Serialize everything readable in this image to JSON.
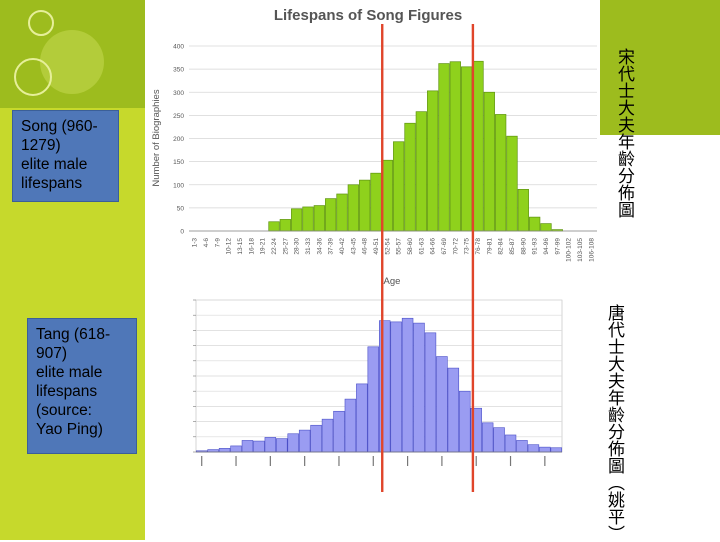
{
  "labels": {
    "song": "Song (960-\n1279)\nelite male\nlifespans",
    "tang": "Tang (618-\n907)\nelite male\nlifespans\n(source:\nYao Ping)"
  },
  "vertical_text": {
    "song": "宋代士大夫年齡分佈圖",
    "tang": "唐代士大夫年齡分佈圖（姚平）"
  },
  "colors": {
    "song_bar": "#8fd11c",
    "tang_bar": "#9a9cf2",
    "marker_line": "#e0452a",
    "left_panel": "#c6d92c",
    "label_box": "#4f77b8"
  },
  "chart_data": [
    {
      "type": "bar",
      "title": "Lifespans of Song Figures",
      "xlabel": "Age",
      "ylabel": "Number of Biographies",
      "ylim": [
        0,
        400
      ],
      "yticks": [
        0,
        50,
        100,
        150,
        200,
        250,
        300,
        350,
        400
      ],
      "grid": true,
      "categories": [
        "1-3",
        "4-6",
        "7-9",
        "10-12",
        "13-15",
        "16-18",
        "19-21",
        "22-24",
        "25-27",
        "28-30",
        "31-33",
        "34-36",
        "37-39",
        "40-42",
        "43-45",
        "46-48",
        "49-51",
        "52-54",
        "55-57",
        "58-60",
        "61-63",
        "64-66",
        "67-69",
        "70-72",
        "73-75",
        "76-78",
        "79-81",
        "82-84",
        "85-87",
        "88-90",
        "91-93",
        "94-96",
        "97-99",
        "100-102",
        "103-105",
        "106-108"
      ],
      "values": [
        0,
        0,
        0,
        0,
        0,
        0,
        0,
        20,
        25,
        48,
        52,
        55,
        70,
        80,
        100,
        110,
        125,
        153,
        193,
        233,
        258,
        303,
        362,
        366,
        355,
        367,
        300,
        252,
        205,
        90,
        30,
        16,
        3,
        0,
        0,
        0
      ]
    },
    {
      "type": "bar",
      "title": "",
      "xlabel": "",
      "ylabel": "",
      "grid": true,
      "values": [
        2,
        4,
        6,
        10,
        19,
        18,
        24,
        22,
        30,
        36,
        44,
        54,
        67,
        87,
        112,
        173,
        216,
        214,
        220,
        212,
        196,
        157,
        138,
        100,
        72,
        48,
        40,
        28,
        19,
        12,
        8,
        7
      ]
    }
  ],
  "marker_lines": [
    {
      "name": "",
      "top_chart_category": "52-54",
      "bottom_chart_index": 16
    },
    {
      "name": "",
      "top_chart_category": "76-78",
      "bottom_chart_index": 26
    }
  ]
}
